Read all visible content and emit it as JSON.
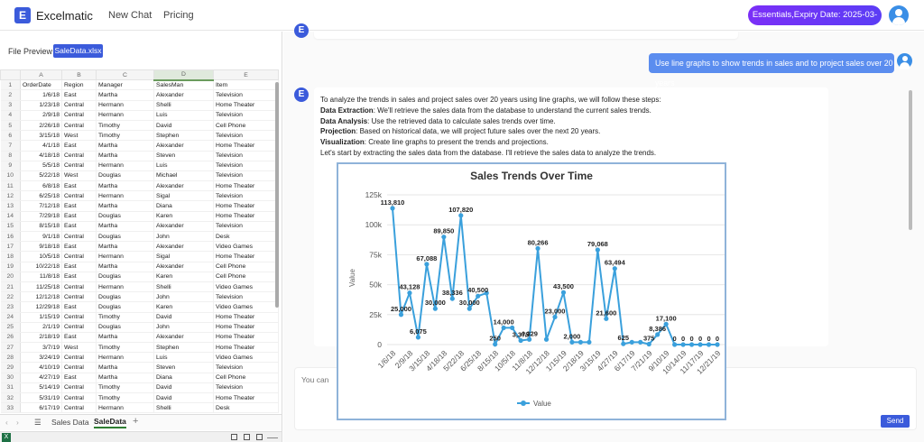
{
  "header": {
    "logo_letter": "E",
    "brand": "Excelmatic",
    "nav": [
      "New Chat",
      "Pricing"
    ],
    "plan_badge": "Essentials,Expiry Date: 2025-03-25"
  },
  "file_panel": {
    "label": "File Preview",
    "file_name": "SaleData.xlsx"
  },
  "sheet": {
    "col_letters": [
      "A",
      "B",
      "C",
      "D",
      "E"
    ],
    "headers": [
      "OrderDate",
      "Region",
      "Manager",
      "SalesMan",
      "Item"
    ],
    "rows": [
      [
        "1/6/18",
        "East",
        "Martha",
        "Alexander",
        "Television"
      ],
      [
        "1/23/18",
        "Central",
        "Hermann",
        "Shelli",
        "Home Theater"
      ],
      [
        "2/9/18",
        "Central",
        "Hermann",
        "Luis",
        "Television"
      ],
      [
        "2/26/18",
        "Central",
        "Timothy",
        "David",
        "Cell Phone"
      ],
      [
        "3/15/18",
        "West",
        "Timothy",
        "Stephen",
        "Television"
      ],
      [
        "4/1/18",
        "East",
        "Martha",
        "Alexander",
        "Home Theater"
      ],
      [
        "4/18/18",
        "Central",
        "Martha",
        "Steven",
        "Television"
      ],
      [
        "5/5/18",
        "Central",
        "Hermann",
        "Luis",
        "Television"
      ],
      [
        "5/22/18",
        "West",
        "Douglas",
        "Michael",
        "Television"
      ],
      [
        "6/8/18",
        "East",
        "Martha",
        "Alexander",
        "Home Theater"
      ],
      [
        "6/25/18",
        "Central",
        "Hermann",
        "Sigal",
        "Television"
      ],
      [
        "7/12/18",
        "East",
        "Martha",
        "Diana",
        "Home Theater"
      ],
      [
        "7/29/18",
        "East",
        "Douglas",
        "Karen",
        "Home Theater"
      ],
      [
        "8/15/18",
        "East",
        "Martha",
        "Alexander",
        "Television"
      ],
      [
        "9/1/18",
        "Central",
        "Douglas",
        "John",
        "Desk"
      ],
      [
        "9/18/18",
        "East",
        "Martha",
        "Alexander",
        "Video Games"
      ],
      [
        "10/5/18",
        "Central",
        "Hermann",
        "Sigal",
        "Home Theater"
      ],
      [
        "10/22/18",
        "East",
        "Martha",
        "Alexander",
        "Cell Phone"
      ],
      [
        "11/8/18",
        "East",
        "Douglas",
        "Karen",
        "Cell Phone"
      ],
      [
        "11/25/18",
        "Central",
        "Hermann",
        "Shelli",
        "Video Games"
      ],
      [
        "12/12/18",
        "Central",
        "Douglas",
        "John",
        "Television"
      ],
      [
        "12/29/18",
        "East",
        "Douglas",
        "Karen",
        "Video Games"
      ],
      [
        "1/15/19",
        "Central",
        "Timothy",
        "David",
        "Home Theater"
      ],
      [
        "2/1/19",
        "Central",
        "Douglas",
        "John",
        "Home Theater"
      ],
      [
        "2/18/19",
        "East",
        "Martha",
        "Alexander",
        "Home Theater"
      ],
      [
        "3/7/19",
        "West",
        "Timothy",
        "Stephen",
        "Home Theater"
      ],
      [
        "3/24/19",
        "Central",
        "Hermann",
        "Luis",
        "Video Games"
      ],
      [
        "4/10/19",
        "Central",
        "Martha",
        "Steven",
        "Television"
      ],
      [
        "4/27/19",
        "East",
        "Martha",
        "Diana",
        "Cell Phone"
      ],
      [
        "5/14/19",
        "Central",
        "Timothy",
        "David",
        "Television"
      ],
      [
        "5/31/19",
        "Central",
        "Timothy",
        "David",
        "Home Theater"
      ],
      [
        "6/17/19",
        "Central",
        "Hermann",
        "Shelli",
        "Desk"
      ]
    ],
    "tabs": [
      "Sales Data",
      "SaleData"
    ],
    "active_tab": "SaleData"
  },
  "chat": {
    "user_message": "Use line graphs to show trends in sales and to project sales over 20 years",
    "bot_intro": "To analyze the trends in sales and project sales over 20 years using line graphs, we will follow these steps:",
    "steps": [
      {
        "label": "Data Extraction",
        "text": ": We'll retrieve the sales data from the database to understand the current sales trends."
      },
      {
        "label": "Data Analysis",
        "text": ": Use the retrieved data to calculate sales trends over time."
      },
      {
        "label": "Projection",
        "text": ": Based on historical data, we will project future sales over the next 20 years."
      },
      {
        "label": "Visualization",
        "text": ": Create line graphs to present the trends and projections."
      }
    ],
    "bot_outro": "Let's start by extracting the sales data from the database. I'll retrieve the sales data to analyze the trends.",
    "input_placeholder": "You can a",
    "send_label": "Send"
  },
  "chart_data": {
    "type": "line",
    "title": "Sales Trends Over Time",
    "ylabel": "Value",
    "ylim": [
      0,
      125000
    ],
    "yticks": [
      "0",
      "25k",
      "50k",
      "75k",
      "100k",
      "125k"
    ],
    "legend": "bottom",
    "x_tick_labels": [
      "1/6/18",
      "2/9/18",
      "3/15/18",
      "4/18/18",
      "5/22/18",
      "6/25/18",
      "8/15/18",
      "10/5/18",
      "11/8/18",
      "12/12/18",
      "1/15/19",
      "2/18/19",
      "3/15/19",
      "4/27/19",
      "6/17/19",
      "7/21/19",
      "9/10/19",
      "10/14/19",
      "11/17/19",
      "12/21/19"
    ],
    "series": [
      {
        "name": "Value",
        "color": "#3aa0dc",
        "values": [
          113810,
          25000,
          43128,
          6075,
          67088,
          30000,
          89850,
          38336,
          107820,
          30000,
          40500,
          43000,
          250,
          14000,
          14000,
          3375,
          4329,
          80266,
          4329,
          23000,
          43500,
          2000,
          2000,
          2000,
          79068,
          21600,
          63494,
          625,
          2000,
          2000,
          375,
          8386,
          17100,
          0,
          0,
          0,
          0,
          0,
          0
        ]
      }
    ],
    "data_labels": [
      {
        "i": 0,
        "text": "113,810"
      },
      {
        "i": 1,
        "text": "25,000"
      },
      {
        "i": 2,
        "text": "43,128"
      },
      {
        "i": 3,
        "text": "6,075"
      },
      {
        "i": 4,
        "text": "67,088"
      },
      {
        "i": 5,
        "text": "30,000"
      },
      {
        "i": 6,
        "text": "89,850"
      },
      {
        "i": 7,
        "text": "38,336"
      },
      {
        "i": 8,
        "text": "107,820"
      },
      {
        "i": 9,
        "text": "30,000"
      },
      {
        "i": 10,
        "text": "40,500"
      },
      {
        "i": 12,
        "text": "250"
      },
      {
        "i": 13,
        "text": "14,000"
      },
      {
        "i": 15,
        "text": "3,375"
      },
      {
        "i": 16,
        "text": "4,329"
      },
      {
        "i": 17,
        "text": "80,266"
      },
      {
        "i": 19,
        "text": "23,000"
      },
      {
        "i": 20,
        "text": "43,500"
      },
      {
        "i": 21,
        "text": "2,000"
      },
      {
        "i": 24,
        "text": "79,068"
      },
      {
        "i": 25,
        "text": "21,600"
      },
      {
        "i": 26,
        "text": "63,494"
      },
      {
        "i": 27,
        "text": "625"
      },
      {
        "i": 30,
        "text": "375"
      },
      {
        "i": 31,
        "text": "8,386"
      },
      {
        "i": 32,
        "text": "17,100"
      },
      {
        "i": 33,
        "text": "0"
      },
      {
        "i": 34,
        "text": "0"
      },
      {
        "i": 35,
        "text": "0"
      },
      {
        "i": 36,
        "text": "0"
      },
      {
        "i": 37,
        "text": "0"
      },
      {
        "i": 38,
        "text": "0"
      }
    ]
  }
}
